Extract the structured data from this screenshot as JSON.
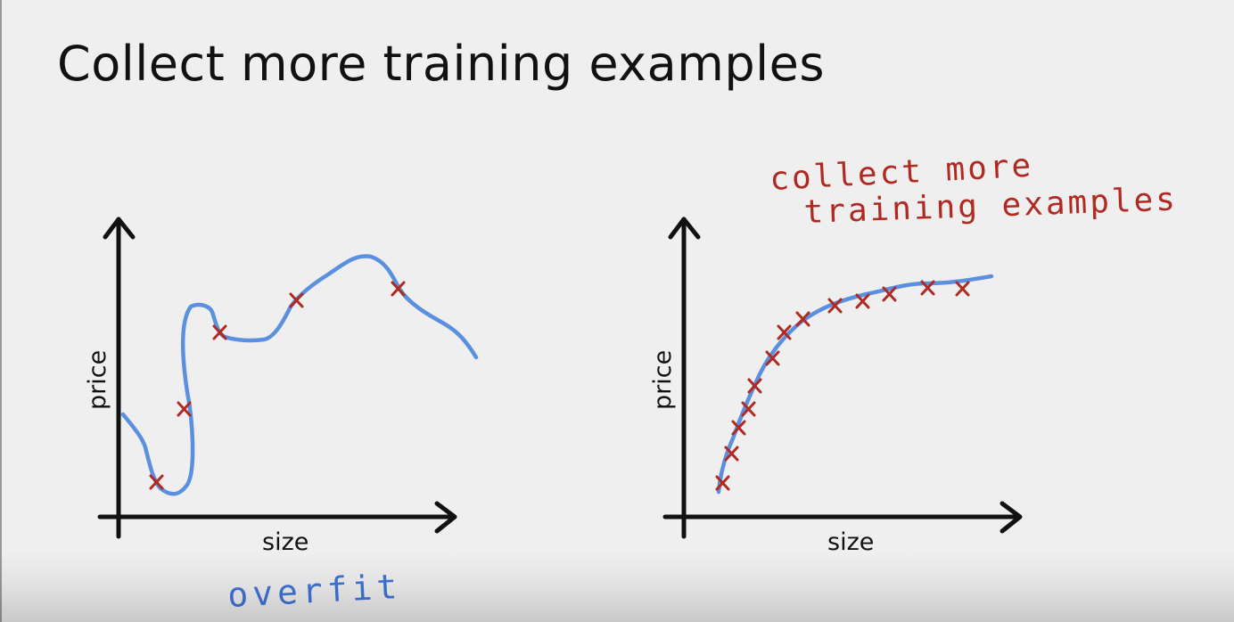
{
  "slide": {
    "title": "Collect more training examples"
  },
  "left_plot": {
    "x_axis_label": "size",
    "y_axis_label": "price",
    "annotation": "overfit"
  },
  "right_plot": {
    "x_axis_label": "size",
    "y_axis_label": "price",
    "annotation_line1": "collect more",
    "annotation_line2": "training examples"
  },
  "colors": {
    "curve": "#5b8fe0",
    "points": "#b02a22",
    "axes": "#111111",
    "background": "#efefef"
  }
}
